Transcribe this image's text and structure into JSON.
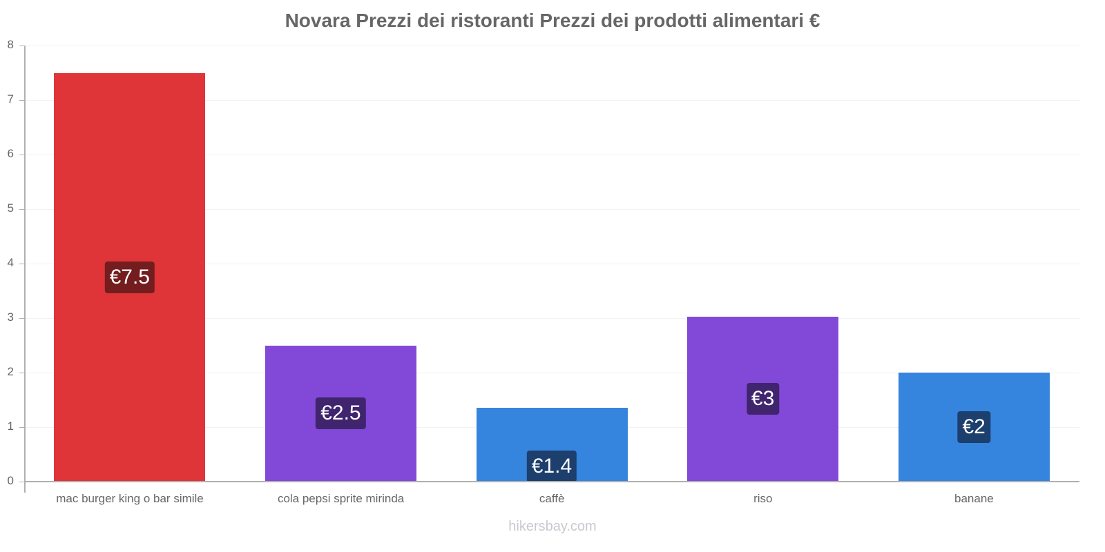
{
  "chart_data": {
    "type": "bar",
    "title": "Novara Prezzi dei ristoranti Prezzi dei prodotti alimentari €",
    "xlabel": "",
    "ylabel": "",
    "ylim": [
      0,
      8
    ],
    "yticks": [
      0,
      1,
      2,
      3,
      4,
      5,
      6,
      7,
      8
    ],
    "grid": true,
    "categories": [
      "mac burger king o bar simile",
      "cola pepsi sprite mirinda",
      "caffè",
      "riso",
      "banane"
    ],
    "values": [
      7.5,
      2.5,
      1.35,
      3.03,
      2.0
    ],
    "data_labels": [
      "€7.5",
      "€2.5",
      "€1.4",
      "€3",
      "€2"
    ],
    "bar_colors": [
      "#e03538",
      "#8249d8",
      "#3584de",
      "#8249d8",
      "#3584de"
    ],
    "label_bg_colors": [
      "#731d1f",
      "#40246e",
      "#1c3f6d",
      "#40246e",
      "#1c3f6d"
    ]
  },
  "footer": "hikersbay.com"
}
